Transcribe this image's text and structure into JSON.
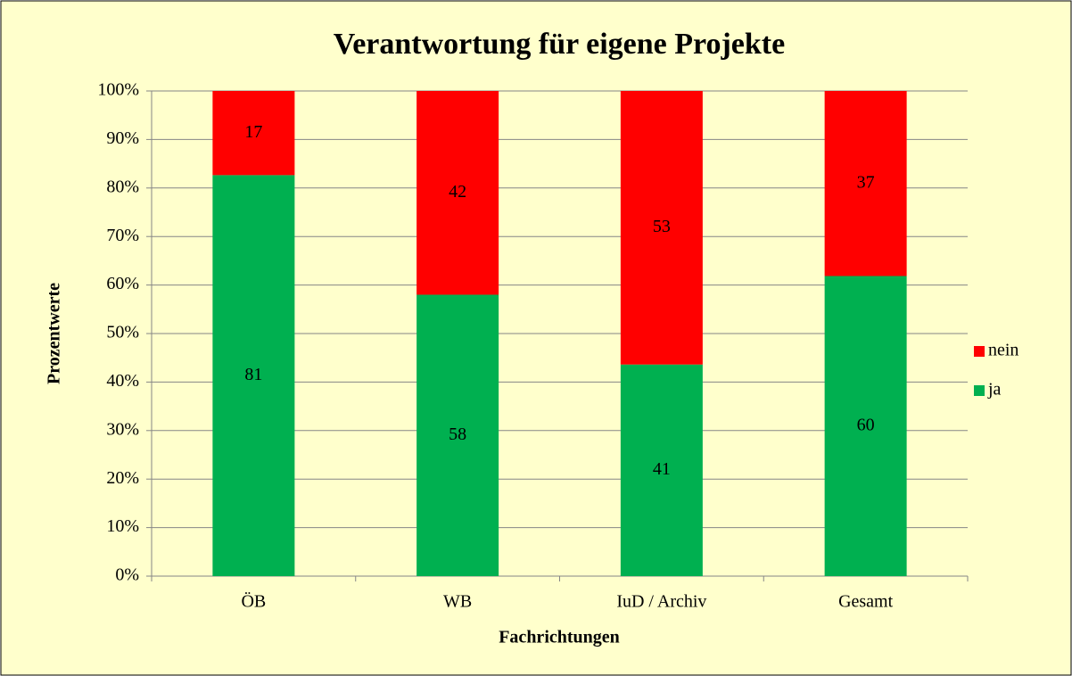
{
  "chart_data": {
    "type": "bar",
    "stacked": "percent",
    "title": "Verantwortung für eigene Projekte",
    "x_label": "Fachrichtungen",
    "y_label": "Prozentwerte",
    "categories": [
      "ÖB",
      "WB",
      "IuD / Archiv",
      "Gesamt"
    ],
    "series": [
      {
        "name": "ja",
        "color": "#00b050",
        "values": [
          81,
          58,
          41,
          60
        ]
      },
      {
        "name": "nein",
        "color": "#ff0000",
        "values": [
          17,
          42,
          53,
          37
        ]
      }
    ],
    "ylim": [
      0,
      100
    ],
    "yticks": [
      {
        "value": 0,
        "label": "0%"
      },
      {
        "value": 10,
        "label": "10%"
      },
      {
        "value": 20,
        "label": "20%"
      },
      {
        "value": 30,
        "label": "30%"
      },
      {
        "value": 40,
        "label": "40%"
      },
      {
        "value": 50,
        "label": "50%"
      },
      {
        "value": 60,
        "label": "60%"
      },
      {
        "value": 70,
        "label": "70%"
      },
      {
        "value": 80,
        "label": "80%"
      },
      {
        "value": 90,
        "label": "90%"
      },
      {
        "value": 100,
        "label": "100%"
      }
    ],
    "grid": true,
    "legend": "right"
  }
}
